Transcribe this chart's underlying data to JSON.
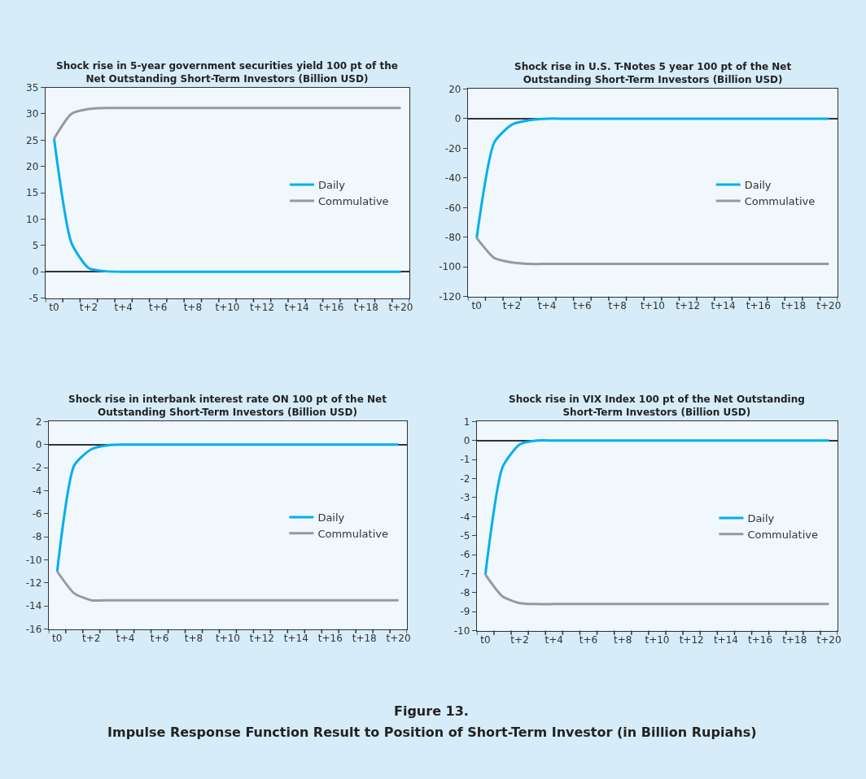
{
  "chart_data": [
    {
      "type": "line",
      "title": "Shock rise in 5-year government securities yield 100 pt of the Net Outstanding Short-Term Investors (Billion USD)",
      "categories": [
        "t0",
        null,
        "t+2",
        null,
        "t+4",
        null,
        "t+6",
        null,
        "t+8",
        null,
        "t+10",
        null,
        "t+12",
        null,
        "t+14",
        null,
        "t+16",
        null,
        "t+18",
        null,
        "t+20"
      ],
      "series": [
        {
          "name": "Daily",
          "color": "#00aeef",
          "values": [
            25.3,
            5.5,
            0.7,
            0.1,
            0,
            0,
            0,
            0,
            0,
            0,
            0,
            0,
            0,
            0,
            0,
            0,
            0,
            0,
            0,
            0,
            0
          ]
        },
        {
          "name": "Commulative",
          "color": "#999999",
          "values": [
            25.3,
            30,
            30.9,
            31.1,
            31.1,
            31.1,
            31.1,
            31.1,
            31.1,
            31.1,
            31.1,
            31.1,
            31.1,
            31.1,
            31.1,
            31.1,
            31.1,
            31.1,
            31.1,
            31.1,
            31.1
          ]
        }
      ],
      "ylim": [
        -5,
        35
      ],
      "yticks": [
        -5,
        0,
        5,
        10,
        15,
        20,
        25,
        30,
        35
      ],
      "legend": "right",
      "marker": "none",
      "line_style": "solid"
    },
    {
      "type": "line",
      "title": "Shock rise in U.S. T-Notes 5 year 100 pt of the Net Outstanding Short-Term Investors (Billion USD)",
      "categories": [
        "t0",
        null,
        "t+2",
        null,
        "t+4",
        null,
        "t+6",
        null,
        "t+8",
        null,
        "t+10",
        null,
        "t+12",
        null,
        "t+14",
        null,
        "t+16",
        null,
        "t+18",
        null,
        "t+20"
      ],
      "series": [
        {
          "name": "Daily",
          "color": "#00aeef",
          "values": [
            -80.5,
            -16,
            -4,
            -1,
            0,
            0,
            0,
            0,
            0,
            0,
            0,
            0,
            0,
            0,
            0,
            0,
            0,
            0,
            0,
            0,
            0
          ]
        },
        {
          "name": "Commulative",
          "color": "#999999",
          "values": [
            -80.5,
            -94,
            -97,
            -98,
            -98,
            -98,
            -98,
            -98,
            -98,
            -98,
            -98,
            -98,
            -98,
            -98,
            -98,
            -98,
            -98,
            -98,
            -98,
            -98,
            -98
          ]
        }
      ],
      "ylim": [
        -120,
        20
      ],
      "yticks": [
        -120,
        -100,
        -80,
        -60,
        -40,
        -20,
        0,
        20
      ],
      "legend": "right",
      "marker": "none",
      "line_style": "solid"
    },
    {
      "type": "line",
      "title": "Shock rise in interbank interest rate ON 100 pt of the Net Outstanding Short-Term Investors (Billion USD)",
      "categories": [
        "t0",
        null,
        "t+2",
        null,
        "t+4",
        null,
        "t+6",
        null,
        "t+8",
        null,
        "t+10",
        null,
        "t+12",
        null,
        "t+14",
        null,
        "t+16",
        null,
        "t+18",
        null,
        "t+20"
      ],
      "series": [
        {
          "name": "Daily",
          "color": "#00aeef",
          "values": [
            -11,
            -1.8,
            -0.4,
            -0.05,
            0,
            0,
            0,
            0,
            0,
            0,
            0,
            0,
            0,
            0,
            0,
            0,
            0,
            0,
            0,
            0,
            0
          ]
        },
        {
          "name": "Commulative",
          "color": "#999999",
          "values": [
            -11,
            -12.9,
            -13.5,
            -13.5,
            -13.5,
            -13.5,
            -13.5,
            -13.5,
            -13.5,
            -13.5,
            -13.5,
            -13.5,
            -13.5,
            -13.5,
            -13.5,
            -13.5,
            -13.5,
            -13.5,
            -13.5,
            -13.5,
            -13.5
          ]
        }
      ],
      "ylim": [
        -16,
        2
      ],
      "yticks": [
        -16,
        -14,
        -12,
        -10,
        -8,
        -6,
        -4,
        -2,
        0,
        2
      ],
      "legend": "right",
      "marker": "none",
      "line_style": "solid"
    },
    {
      "type": "line",
      "title": "Shock rise in VIX Index 100 pt of the Net Outstanding Short-Term Investors (Billion USD)",
      "categories": [
        "t0",
        null,
        "t+2",
        null,
        "t+4",
        null,
        "t+6",
        null,
        "t+8",
        null,
        "t+10",
        null,
        "t+12",
        null,
        "t+14",
        null,
        "t+16",
        null,
        "t+18",
        null,
        "t+20"
      ],
      "series": [
        {
          "name": "Daily",
          "color": "#00aeef",
          "values": [
            -7.05,
            -1.4,
            -0.2,
            0,
            0,
            0,
            0,
            0,
            0,
            0,
            0,
            0,
            0,
            0,
            0,
            0,
            0,
            0,
            0,
            0,
            0
          ]
        },
        {
          "name": "Commulative",
          "color": "#999999",
          "values": [
            -7.05,
            -8.2,
            -8.55,
            -8.6,
            -8.6,
            -8.6,
            -8.6,
            -8.6,
            -8.6,
            -8.6,
            -8.6,
            -8.6,
            -8.6,
            -8.6,
            -8.6,
            -8.6,
            -8.6,
            -8.6,
            -8.6,
            -8.6,
            -8.6
          ]
        }
      ],
      "ylim": [
        -10,
        1
      ],
      "yticks": [
        -10,
        -9,
        -8,
        -7,
        -6,
        -5,
        -4,
        -3,
        -2,
        -1,
        0,
        1
      ],
      "legend": "right",
      "marker": "none",
      "line_style": "solid",
      "annotations": [
        "Figure 13.",
        "Impulse Response Function Result to Position of Short-Term Investor (in Billion Rupiahs)"
      ]
    }
  ]
}
